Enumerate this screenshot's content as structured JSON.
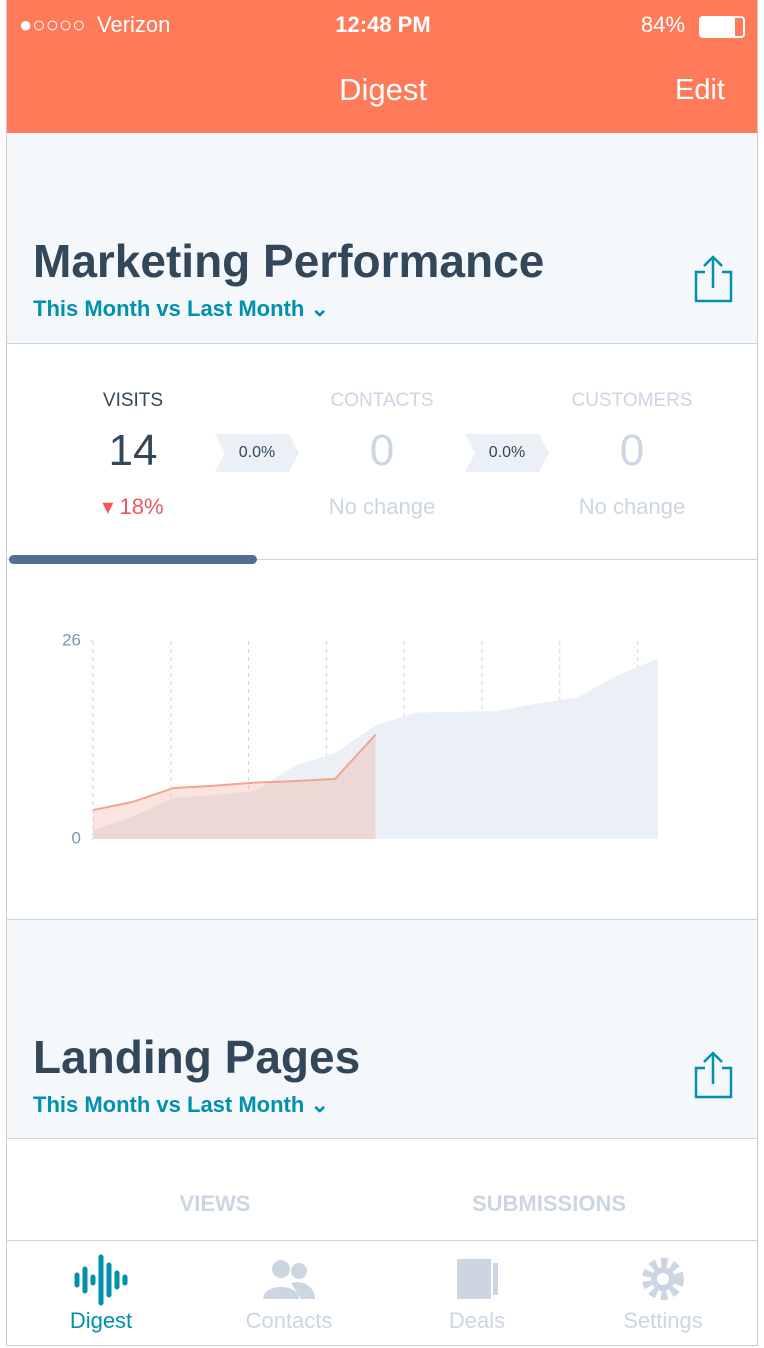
{
  "status_bar": {
    "carrier": "Verizon",
    "time": "12:48 PM",
    "battery": "84%"
  },
  "nav": {
    "title": "Digest",
    "edit": "Edit"
  },
  "marketing": {
    "title": "Marketing Performance",
    "period": "This Month vs Last Month",
    "metrics": [
      {
        "label": "VISITS",
        "value": "14",
        "change": "18%"
      },
      {
        "label": "CONTACTS",
        "value": "0",
        "change": "No change"
      },
      {
        "label": "CUSTOMERS",
        "value": "0",
        "change": "No change"
      }
    ],
    "conversions": [
      "0.0%",
      "0.0%"
    ]
  },
  "chart_data": {
    "type": "area",
    "categories": [
      null,
      null,
      null,
      null,
      null,
      null,
      null,
      null,
      null,
      null,
      null,
      null,
      null,
      null,
      null
    ],
    "series": [
      {
        "color": "#eaf0f6",
        "values": [
          1.1,
          3.0,
          5.4,
          5.8,
          6.3,
          9.6,
          11.3,
          14.9,
          16.6,
          16.7,
          16.8,
          17.8,
          18.6,
          21.5,
          23.7
        ]
      },
      {
        "color": "#f2a58e",
        "values": [
          3.8,
          4.9,
          6.7,
          7.0,
          7.4,
          7.6,
          7.9,
          13.7,
          null,
          null,
          null,
          null,
          null,
          null,
          null
        ]
      }
    ],
    "ylim": [
      0,
      26
    ],
    "yticks": [
      0,
      26
    ]
  },
  "landing": {
    "title": "Landing Pages",
    "period": "This Month vs Last Month",
    "metrics": [
      {
        "label": "VIEWS"
      },
      {
        "label": "SUBMISSIONS"
      }
    ]
  },
  "tabs": [
    "Digest",
    "Contacts",
    "Deals",
    "Settings"
  ]
}
